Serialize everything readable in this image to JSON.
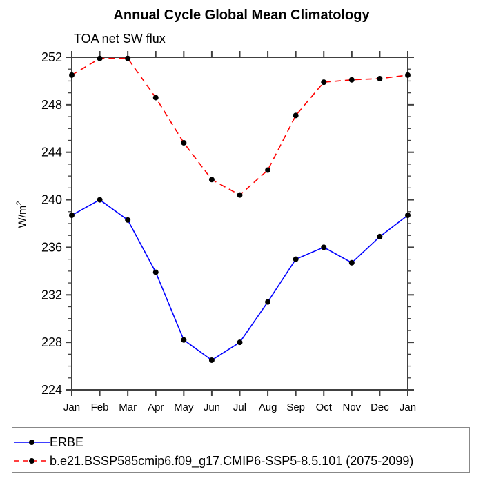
{
  "title": "Annual Cycle Global Mean Climatology",
  "subtitle": "TOA net SW flux",
  "ylabel": {
    "base": "W/m",
    "exp": "2"
  },
  "colors": {
    "axis": "#404040",
    "text": "#000000",
    "marker": "#000000",
    "background": "#ffffff",
    "legend_border": "#888888",
    "erbe_line": "#0000ff",
    "model_line": "#ff0000"
  },
  "chart_data": {
    "type": "line",
    "title": "Annual Cycle Global Mean Climatology",
    "subtitle": "TOA net SW flux",
    "xlabel": "",
    "ylabel": "W/m²",
    "categories": [
      "Jan",
      "Feb",
      "Mar",
      "Apr",
      "May",
      "Jun",
      "Jul",
      "Aug",
      "Sep",
      "Oct",
      "Nov",
      "Dec",
      "Jan"
    ],
    "ylim": [
      224,
      252
    ],
    "ytick_major_step": 4,
    "ytick_minor_step": 1,
    "grid": false,
    "legend_position": "bottom-left-box",
    "series": [
      {
        "name": "ERBE",
        "color": "#0000ff",
        "line_style": "solid",
        "marker": "filled-circle",
        "marker_color": "#000000",
        "values": [
          238.7,
          240.0,
          238.3,
          233.9,
          228.2,
          226.5,
          228.0,
          231.4,
          235.0,
          236.0,
          234.7,
          236.9,
          238.7
        ]
      },
      {
        "name": "b.e21.BSSP585cmip6.f09_g17.CMIP6-SSP5-8.5.101 (2075-2099)",
        "color": "#ff0000",
        "line_style": "dashed",
        "marker": "filled-circle",
        "marker_color": "#000000",
        "values": [
          250.5,
          251.9,
          251.9,
          248.6,
          244.8,
          241.7,
          240.4,
          242.5,
          247.1,
          249.9,
          250.1,
          250.2,
          250.5
        ]
      }
    ]
  }
}
